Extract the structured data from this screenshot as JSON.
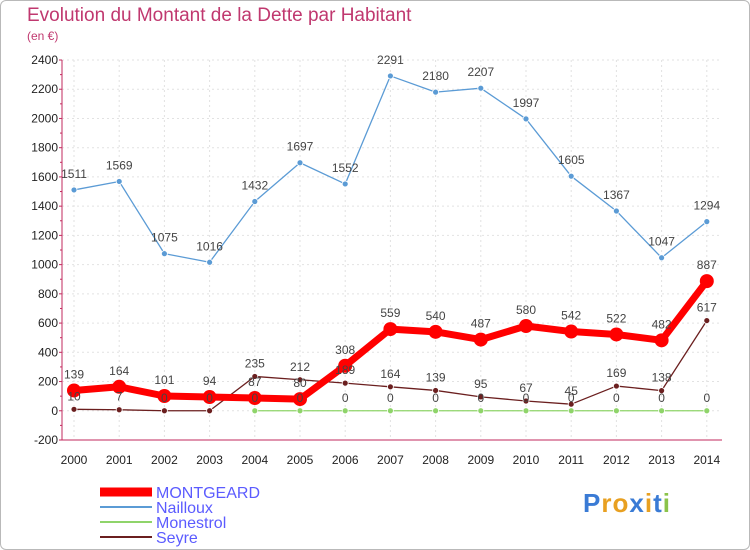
{
  "header": {
    "title": "Evolution du Montant de la Dette par Habitant",
    "unit": "(en €)"
  },
  "logo": {
    "text": "Proxiti",
    "colors": [
      "#3a7bd5",
      "#e8a021",
      "#e8a021",
      "#3a7bd5",
      "#e8a021",
      "#3a7bd5",
      "#8bc34a"
    ]
  },
  "chart_data": {
    "type": "line",
    "x": [
      2000,
      2001,
      2002,
      2003,
      2004,
      2005,
      2006,
      2007,
      2008,
      2009,
      2010,
      2011,
      2012,
      2013,
      2014
    ],
    "ylim": [
      -200,
      2400
    ],
    "yticks": [
      -200,
      0,
      200,
      400,
      600,
      800,
      1000,
      1200,
      1400,
      1600,
      1800,
      2000,
      2200,
      2400
    ],
    "grid": true,
    "series": [
      {
        "name": "MONTGEARD",
        "color": "#ff0000",
        "values": [
          139,
          164,
          101,
          94,
          87,
          80,
          308,
          559,
          540,
          487,
          580,
          542,
          522,
          482,
          887
        ]
      },
      {
        "name": "Nailloux",
        "color": "#5b9bd5",
        "values": [
          1511,
          1569,
          1075,
          1016,
          1432,
          1697,
          1552,
          2291,
          2180,
          2207,
          1997,
          1605,
          1367,
          1047,
          1294
        ]
      },
      {
        "name": "Monestrol",
        "color": "#8fd46a",
        "values": [
          null,
          null,
          null,
          null,
          0,
          0,
          0,
          0,
          0,
          0,
          0,
          0,
          0,
          0,
          0
        ]
      },
      {
        "name": "Seyre",
        "color": "#6b1f1f",
        "values": [
          10,
          7,
          0,
          0,
          235,
          212,
          189,
          164,
          139,
          95,
          67,
          45,
          169,
          138,
          617
        ]
      }
    ]
  }
}
